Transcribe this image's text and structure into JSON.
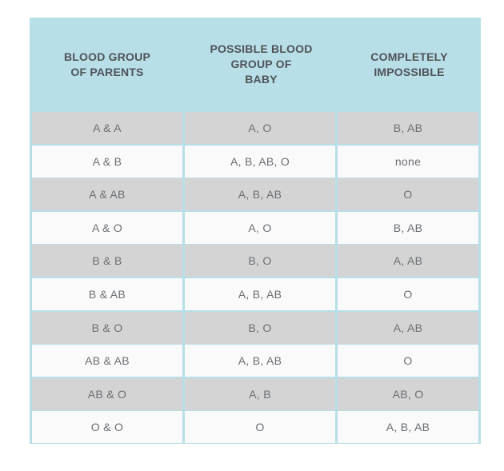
{
  "table": {
    "headers": [
      "BLOOD GROUP\nOF PARENTS",
      "POSSIBLE BLOOD\nGROUP OF\nBABY",
      "COMPLETELY\nIMPOSSIBLE"
    ],
    "rows": [
      [
        "A & A",
        "A, O",
        "B, AB"
      ],
      [
        "A & B",
        "A, B, AB, O",
        "none"
      ],
      [
        "A & AB",
        "A, B, AB",
        "O"
      ],
      [
        "A & O",
        "A, O",
        "B, AB"
      ],
      [
        "B & B",
        "B, O",
        "A, AB"
      ],
      [
        "B & AB",
        "A, B, AB",
        "O"
      ],
      [
        "B & O",
        "B, O",
        "A, AB"
      ],
      [
        "AB & AB",
        "A, B, AB",
        "O"
      ],
      [
        "AB & O",
        "A, B",
        "AB, O"
      ],
      [
        "O & O",
        "O",
        "A, B, AB"
      ]
    ]
  },
  "colors": {
    "header_bg": "#b8dfe7",
    "row_shaded": "#d4d4d4",
    "row_light": "#fafafa",
    "header_text": "#4f5357",
    "cell_text": "#6b6f73"
  }
}
